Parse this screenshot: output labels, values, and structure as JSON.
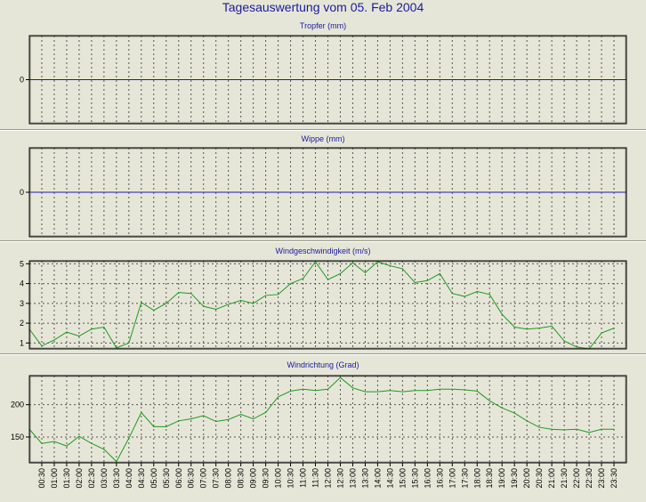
{
  "title": "Tagesauswertung vom 05. Feb 2004",
  "colors": {
    "background": "#e6e6d8",
    "title": "#1a1aa0",
    "zero_line": "#1a1ab4",
    "series": "#1e9a1e",
    "grid": "#555555",
    "frame": "#000000"
  },
  "time_labels": [
    "00:30",
    "01:00",
    "01:30",
    "02:00",
    "02:30",
    "03:00",
    "03:30",
    "04:00",
    "04:30",
    "05:00",
    "05:30",
    "06:00",
    "06:30",
    "07:00",
    "07:30",
    "08:00",
    "08:30",
    "09:00",
    "09:30",
    "10:00",
    "10:30",
    "11:00",
    "11:30",
    "12:00",
    "12:30",
    "13:00",
    "13:30",
    "14:00",
    "14:30",
    "15:00",
    "15:30",
    "16:00",
    "16:30",
    "17:00",
    "17:30",
    "18:00",
    "18:30",
    "19:00",
    "19:30",
    "20:00",
    "20:30",
    "21:00",
    "21:30",
    "22:00",
    "22:30",
    "23:00",
    "23:30"
  ],
  "chart_data": [
    {
      "type": "line",
      "title": "Tropfer (mm)",
      "yticks": [
        0
      ],
      "ylim": [
        -1,
        1
      ],
      "series": [
        {
          "values": [
            0,
            0,
            0,
            0,
            0,
            0,
            0,
            0,
            0,
            0,
            0,
            0,
            0,
            0,
            0,
            0,
            0,
            0,
            0,
            0,
            0,
            0,
            0,
            0,
            0,
            0,
            0,
            0,
            0,
            0,
            0,
            0,
            0,
            0,
            0,
            0,
            0,
            0,
            0,
            0,
            0,
            0,
            0,
            0,
            0,
            0,
            0,
            0
          ]
        }
      ]
    },
    {
      "type": "line",
      "title": "Wippe (mm)",
      "yticks": [
        0
      ],
      "ylim": [
        -1,
        1
      ],
      "series": [
        {
          "values": [
            0,
            0,
            0,
            0,
            0,
            0,
            0,
            0,
            0,
            0,
            0,
            0,
            0,
            0,
            0,
            0,
            0,
            0,
            0,
            0,
            0,
            0,
            0,
            0,
            0,
            0,
            0,
            0,
            0,
            0,
            0,
            0,
            0,
            0,
            0,
            0,
            0,
            0,
            0,
            0,
            0,
            0,
            0,
            0,
            0,
            0,
            0,
            0
          ]
        }
      ]
    },
    {
      "type": "line",
      "title": "Windgeschwindigkeit (m/s)",
      "yticks": [
        1,
        2,
        3,
        4,
        5
      ],
      "ylim": [
        0.7,
        5.15
      ],
      "series": [
        {
          "values": [
            1.7,
            0.85,
            1.15,
            1.55,
            1.35,
            1.7,
            1.8,
            0.75,
            1.0,
            3.05,
            2.65,
            3.0,
            3.55,
            3.5,
            2.85,
            2.7,
            2.95,
            3.15,
            3.0,
            3.4,
            3.45,
            4.0,
            4.25,
            5.1,
            4.2,
            4.5,
            5.05,
            4.55,
            5.1,
            4.9,
            4.75,
            4.05,
            4.15,
            4.5,
            3.5,
            3.35,
            3.6,
            3.45,
            2.45,
            1.8,
            1.7,
            1.75,
            1.85,
            1.1,
            0.8,
            0.7,
            1.5,
            1.75
          ]
        }
      ]
    },
    {
      "type": "line",
      "title": "Windrichtung (Grad)",
      "yticks": [
        150,
        200
      ],
      "ylim": [
        110,
        245
      ],
      "series": [
        {
          "values": [
            162,
            140,
            143,
            136,
            151,
            140,
            131,
            112,
            148,
            188,
            166,
            166,
            175,
            178,
            183,
            174,
            177,
            185,
            178,
            188,
            212,
            221,
            224,
            222,
            224,
            242,
            226,
            220,
            220,
            222,
            220,
            222,
            222,
            224,
            224,
            223,
            221,
            206,
            195,
            187,
            175,
            165,
            162,
            161,
            162,
            157,
            162,
            162
          ]
        }
      ]
    }
  ]
}
